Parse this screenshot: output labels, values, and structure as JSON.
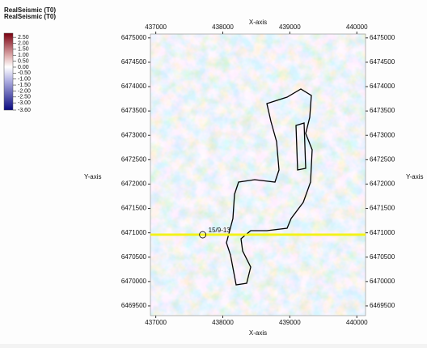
{
  "chart_data": {
    "type": "seismic-map",
    "legend_title": [
      "RealSeismic (T0)",
      "RealSeismic (T0)"
    ],
    "x_label": "X-axis",
    "y_label": "Y-axis",
    "xlim": [
      436920,
      440130
    ],
    "xticks": [
      437000,
      438000,
      439000,
      440000
    ],
    "ylim": [
      6469300,
      6475080
    ],
    "yticks": [
      6469500,
      6470000,
      6470500,
      6471000,
      6471500,
      6472000,
      6472500,
      6473000,
      6473500,
      6474000,
      6474500,
      6475000
    ],
    "clim": [
      -3.6,
      2.85
    ],
    "cticks": [
      {
        "value": 2.5,
        "label": "2.50"
      },
      {
        "value": 2,
        "label": "2.00"
      },
      {
        "value": 1.5,
        "label": "1.50"
      },
      {
        "value": 1,
        "label": "1.00"
      },
      {
        "value": 0.5,
        "label": "0.50"
      },
      {
        "value": 0,
        "label": "0.00"
      },
      {
        "value": -0.5,
        "label": "-0.50"
      },
      {
        "value": -1,
        "label": "-1.00"
      },
      {
        "value": -1.5,
        "label": "-1.50"
      },
      {
        "value": -2,
        "label": "-2.00"
      },
      {
        "value": -2.5,
        "label": "-2.50"
      },
      {
        "value": -3,
        "label": "-3.00"
      },
      {
        "value": -3.6,
        "label": "-3.60"
      }
    ],
    "well": {
      "name": "15/9-13",
      "x": 437700,
      "y": 6470960,
      "line_color": "#f2f21a"
    }
  }
}
